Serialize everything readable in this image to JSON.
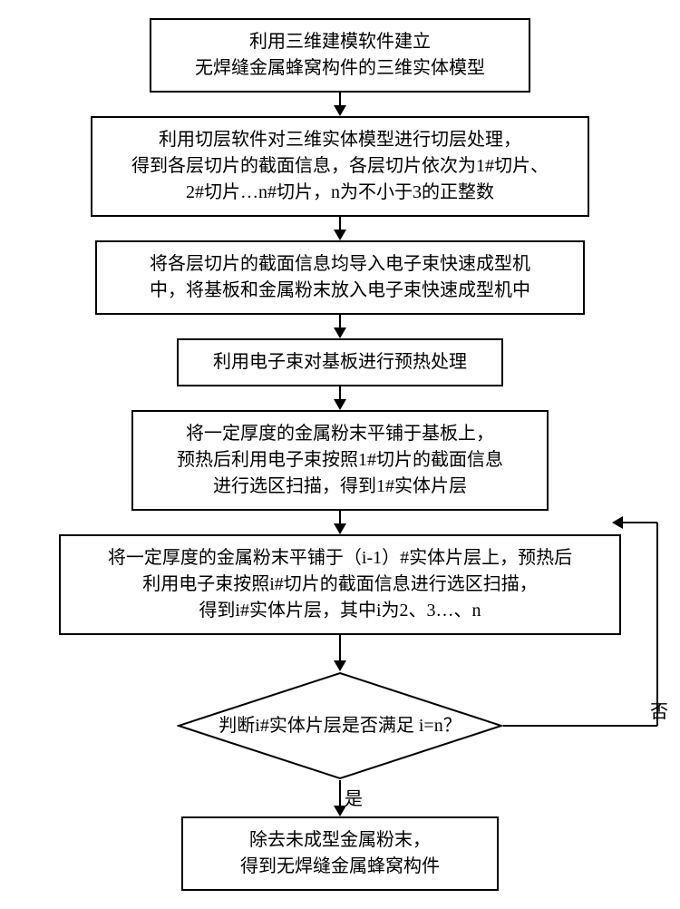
{
  "flow": {
    "step1": "利用三维建模软件建立\n无焊缝金属蜂窝构件的三维实体模型",
    "step2": "利用切层软件对三维实体模型进行切层处理，\n得到各层切片的截面信息，各层切片依次为1#切片、\n2#切片…n#切片，n为不小于3的正整数",
    "step3": "将各层切片的截面信息均导入电子束快速成型机\n中，将基板和金属粉末放入电子束快速成型机中",
    "step4": "利用电子束对基板进行预热处理",
    "step5": "将一定厚度的金属粉末平铺于基板上，\n预热后利用电子束按照1#切片的截面信息\n进行选区扫描，得到1#实体片层",
    "step6": "将一定厚度的金属粉末平铺于（i-1）#实体片层上，预热后\n利用电子束按照i#切片的截面信息进行选区扫描，\n得到i#实体片层，其中i为2、3…、n",
    "decision": "判断i#实体片层是否满足 i=n？",
    "yes_label": "是",
    "no_label": "否",
    "step_end": "除去未成型金属粉末，\n得到无焊缝金属蜂窝构件"
  },
  "style": {
    "border_color": "#000000",
    "bg_color": "#ffffff",
    "font_size_box": 20,
    "arrow_gap_short": 18,
    "arrow_gap_med": 22,
    "diamond_size": 155,
    "diamond_wrap_w": 360,
    "diamond_wrap_h": 120
  }
}
